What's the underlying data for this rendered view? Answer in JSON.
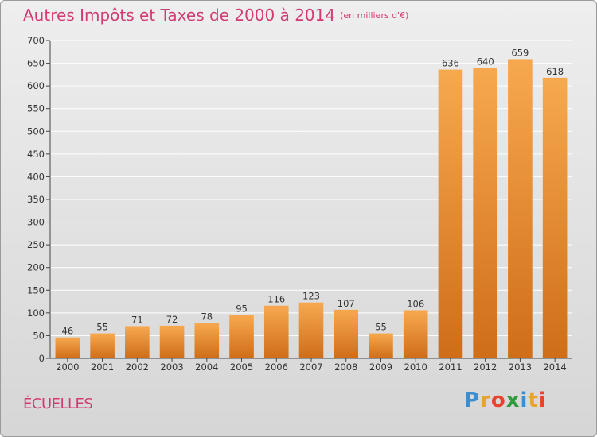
{
  "title": "Autres Impôts et Taxes de 2000 à 2014",
  "unit": "(en milliers d'€)",
  "commune": "ÉCUELLES",
  "logo": {
    "text": "Proxiti",
    "colors": [
      "#3b8fd1",
      "#e8a32b",
      "#e7432e",
      "#2e9c3c",
      "#3b8fd1",
      "#e8a32b",
      "#e7432e"
    ]
  },
  "colors": {
    "bar_light": "#f7a94f",
    "bar_dark": "#cf6d18",
    "title": "#d23c74",
    "grid": "#ffffff"
  },
  "chart_data": {
    "type": "bar",
    "title": "Autres Impôts et Taxes de 2000 à 2014",
    "categories": [
      "2000",
      "2001",
      "2002",
      "2003",
      "2004",
      "2005",
      "2006",
      "2007",
      "2008",
      "2009",
      "2010",
      "2011",
      "2012",
      "2013",
      "2014"
    ],
    "values": [
      46,
      55,
      71,
      72,
      78,
      95,
      116,
      123,
      107,
      55,
      106,
      636,
      640,
      659,
      618
    ],
    "ylim": [
      0,
      700
    ],
    "yticks": [
      0,
      50,
      100,
      150,
      200,
      250,
      300,
      350,
      400,
      450,
      500,
      550,
      600,
      650,
      700
    ],
    "grid": true,
    "data_labels": true
  }
}
